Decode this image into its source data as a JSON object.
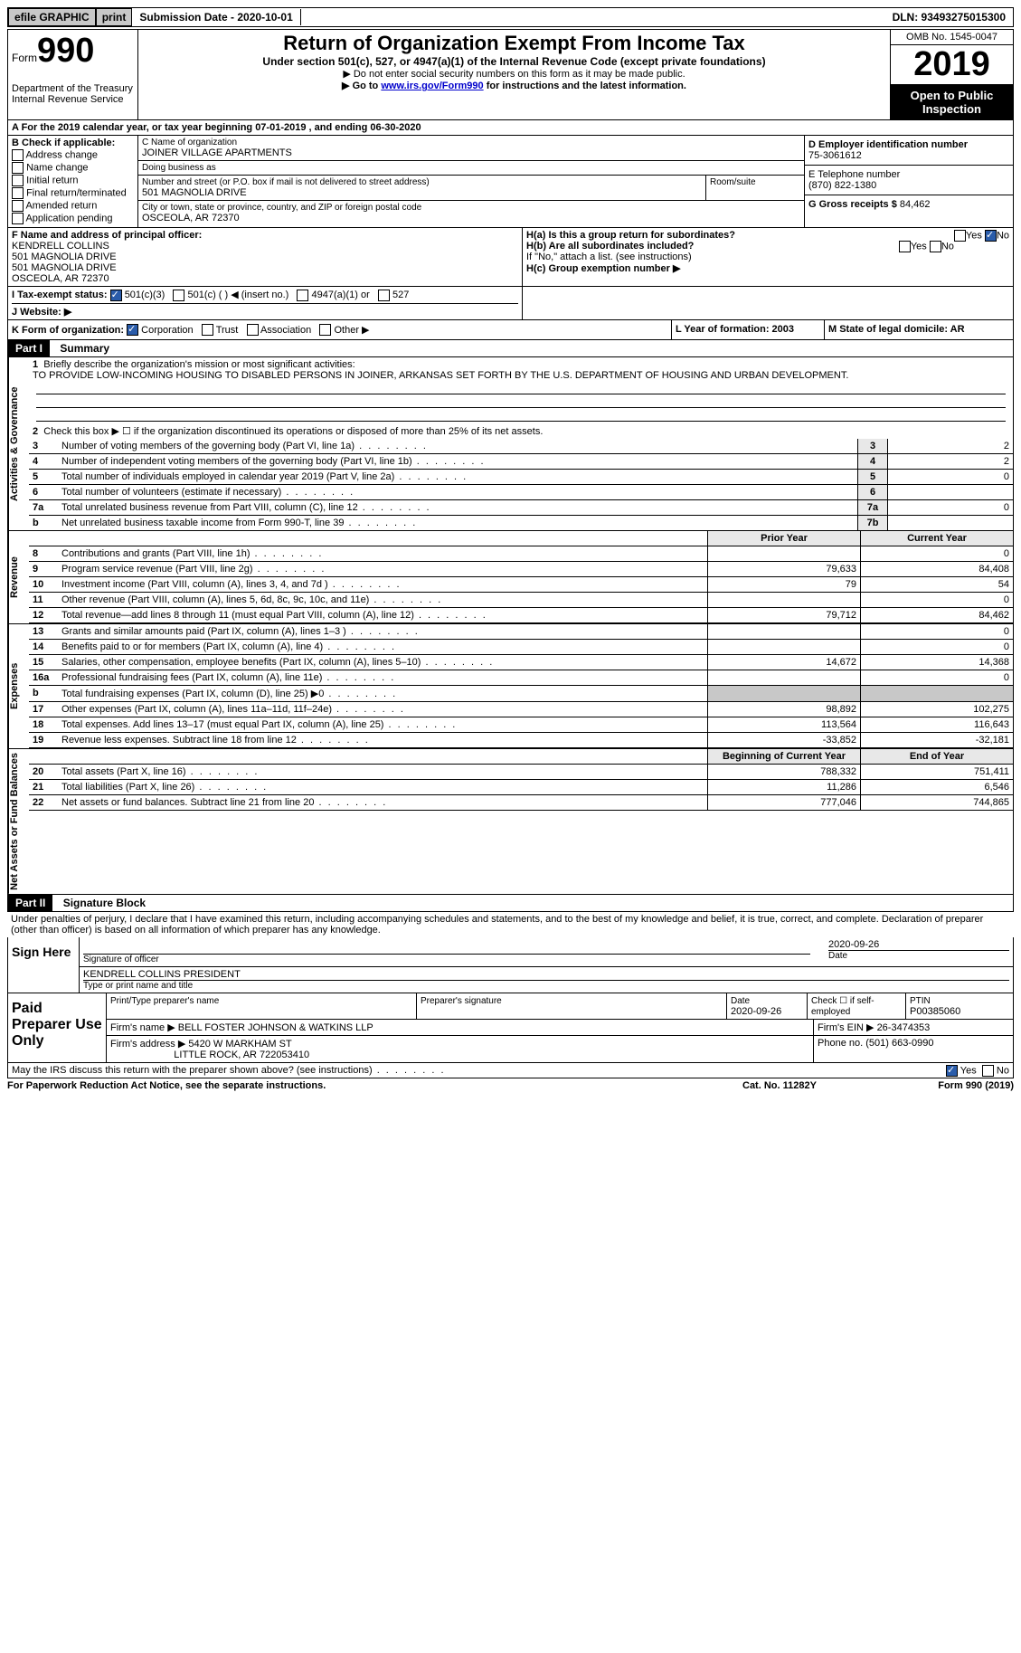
{
  "topbar": {
    "efile": "efile GRAPHIC",
    "print": "print",
    "submission": "Submission Date - 2020-10-01",
    "dln": "DLN: 93493275015300"
  },
  "header": {
    "form_word": "Form",
    "form_num": "990",
    "dept": "Department of the Treasury\nInternal Revenue Service",
    "title": "Return of Organization Exempt From Income Tax",
    "sub": "Under section 501(c), 527, or 4947(a)(1) of the Internal Revenue Code (except private foundations)",
    "line1": "▶ Do not enter social security numbers on this form as it may be made public.",
    "line2_pre": "▶ Go to ",
    "line2_link": "www.irs.gov/Form990",
    "line2_post": " for instructions and the latest information.",
    "omb": "OMB No. 1545-0047",
    "year": "2019",
    "inspection": "Open to Public Inspection"
  },
  "lineA": "A For the 2019 calendar year, or tax year beginning 07-01-2019    , and ending 06-30-2020",
  "secB": {
    "label": "B Check if applicable:",
    "opts": [
      "Address change",
      "Name change",
      "Initial return",
      "Final return/terminated",
      "Amended return",
      "Application pending"
    ]
  },
  "secC": {
    "name_lbl": "C Name of organization",
    "name": "JOINER VILLAGE APARTMENTS",
    "dba_lbl": "Doing business as",
    "dba": "",
    "addr_lbl": "Number and street (or P.O. box if mail is not delivered to street address)",
    "addr": "501 MAGNOLIA DRIVE",
    "room_lbl": "Room/suite",
    "city_lbl": "City or town, state or province, country, and ZIP or foreign postal code",
    "city": "OSCEOLA, AR  72370"
  },
  "secD": {
    "ein_lbl": "D Employer identification number",
    "ein": "75-3061612",
    "tel_lbl": "E Telephone number",
    "tel": "(870) 822-1380",
    "gross_lbl": "G Gross receipts $",
    "gross": "84,462"
  },
  "secF": {
    "lbl": "F Name and address of principal officer:",
    "name": "KENDRELL COLLINS",
    "l1": "501 MAGNOLIA DRIVE",
    "l2": "501 MAGNOLIA DRIVE",
    "l3": "OSCEOLA, AR  72370"
  },
  "secH": {
    "a": "H(a)  Is this a group return for subordinates?",
    "b": "H(b)  Are all subordinates included?",
    "note": "If \"No,\" attach a list. (see instructions)",
    "c": "H(c)  Group exemption number ▶"
  },
  "secI": {
    "lbl": "I   Tax-exempt status:",
    "o1": "501(c)(3)",
    "o2": "501(c) (  ) ◀ (insert no.)",
    "o3": "4947(a)(1) or",
    "o4": "527"
  },
  "secJ": "J  Website: ▶",
  "secK": {
    "lbl": "K Form of organization:",
    "opts": [
      "Corporation",
      "Trust",
      "Association",
      "Other ▶"
    ],
    "L": "L Year of formation: 2003",
    "M": "M State of legal domicile: AR"
  },
  "part1": {
    "hdr": "Part I",
    "title": "Summary",
    "q1_lbl": "Briefly describe the organization's mission or most significant activities:",
    "q1_txt": "TO PROVIDE LOW-INCOMING HOUSING TO DISABLED PERSONS IN JOINER, ARKANSAS SET FORTH BY THE U.S. DEPARTMENT OF HOUSING AND URBAN DEVELOPMENT.",
    "q2": "Check this box ▶ ☐ if the organization discontinued its operations or disposed of more than 25% of its net assets.",
    "lines_single": [
      {
        "n": "3",
        "t": "Number of voting members of the governing body (Part VI, line 1a)",
        "b": "3",
        "v": "2"
      },
      {
        "n": "4",
        "t": "Number of independent voting members of the governing body (Part VI, line 1b)",
        "b": "4",
        "v": "2"
      },
      {
        "n": "5",
        "t": "Total number of individuals employed in calendar year 2019 (Part V, line 2a)",
        "b": "5",
        "v": "0"
      },
      {
        "n": "6",
        "t": "Total number of volunteers (estimate if necessary)",
        "b": "6",
        "v": ""
      },
      {
        "n": "7a",
        "t": "Total unrelated business revenue from Part VIII, column (C), line 12",
        "b": "7a",
        "v": "0"
      },
      {
        "n": "b",
        "t": "Net unrelated business taxable income from Form 990-T, line 39",
        "b": "7b",
        "v": ""
      }
    ],
    "col_hdr": {
      "c1": "Prior Year",
      "c2": "Current Year"
    },
    "revenue": [
      {
        "n": "8",
        "t": "Contributions and grants (Part VIII, line 1h)",
        "c1": "",
        "c2": "0"
      },
      {
        "n": "9",
        "t": "Program service revenue (Part VIII, line 2g)",
        "c1": "79,633",
        "c2": "84,408"
      },
      {
        "n": "10",
        "t": "Investment income (Part VIII, column (A), lines 3, 4, and 7d )",
        "c1": "79",
        "c2": "54"
      },
      {
        "n": "11",
        "t": "Other revenue (Part VIII, column (A), lines 5, 6d, 8c, 9c, 10c, and 11e)",
        "c1": "",
        "c2": "0"
      },
      {
        "n": "12",
        "t": "Total revenue—add lines 8 through 11 (must equal Part VIII, column (A), line 12)",
        "c1": "79,712",
        "c2": "84,462"
      }
    ],
    "expenses": [
      {
        "n": "13",
        "t": "Grants and similar amounts paid (Part IX, column (A), lines 1–3 )",
        "c1": "",
        "c2": "0"
      },
      {
        "n": "14",
        "t": "Benefits paid to or for members (Part IX, column (A), line 4)",
        "c1": "",
        "c2": "0"
      },
      {
        "n": "15",
        "t": "Salaries, other compensation, employee benefits (Part IX, column (A), lines 5–10)",
        "c1": "14,672",
        "c2": "14,368"
      },
      {
        "n": "16a",
        "t": "Professional fundraising fees (Part IX, column (A), line 11e)",
        "c1": "",
        "c2": "0"
      },
      {
        "n": "b",
        "t": "Total fundraising expenses (Part IX, column (D), line 25) ▶0",
        "c1": "shade",
        "c2": "shade"
      },
      {
        "n": "17",
        "t": "Other expenses (Part IX, column (A), lines 11a–11d, 11f–24e)",
        "c1": "98,892",
        "c2": "102,275"
      },
      {
        "n": "18",
        "t": "Total expenses. Add lines 13–17 (must equal Part IX, column (A), line 25)",
        "c1": "113,564",
        "c2": "116,643"
      },
      {
        "n": "19",
        "t": "Revenue less expenses. Subtract line 18 from line 12",
        "c1": "-33,852",
        "c2": "-32,181"
      }
    ],
    "bal_hdr": {
      "c1": "Beginning of Current Year",
      "c2": "End of Year"
    },
    "balances": [
      {
        "n": "20",
        "t": "Total assets (Part X, line 16)",
        "c1": "788,332",
        "c2": "751,411"
      },
      {
        "n": "21",
        "t": "Total liabilities (Part X, line 26)",
        "c1": "11,286",
        "c2": "6,546"
      },
      {
        "n": "22",
        "t": "Net assets or fund balances. Subtract line 21 from line 20",
        "c1": "777,046",
        "c2": "744,865"
      }
    ],
    "vtabs": {
      "gov": "Activities & Governance",
      "rev": "Revenue",
      "exp": "Expenses",
      "bal": "Net Assets or Fund Balances"
    }
  },
  "part2": {
    "hdr": "Part II",
    "title": "Signature Block",
    "decl": "Under penalties of perjury, I declare that I have examined this return, including accompanying schedules and statements, and to the best of my knowledge and belief, it is true, correct, and complete. Declaration of preparer (other than officer) is based on all information of which preparer has any knowledge.",
    "sign_here": "Sign Here",
    "sig_date": "2020-09-26",
    "sig_lbl": "Signature of officer",
    "date_lbl": "Date",
    "name": "KENDRELL COLLINS PRESIDENT",
    "name_lbl": "Type or print name and title",
    "paid": "Paid Preparer Use Only",
    "prep_hdrs": {
      "a": "Print/Type preparer's name",
      "b": "Preparer's signature",
      "c": "Date",
      "d": "Check ☐ if self-employed",
      "e": "PTIN"
    },
    "prep_date": "2020-09-26",
    "ptin": "P00385060",
    "firm_name_lbl": "Firm's name    ▶",
    "firm_name": "BELL FOSTER JOHNSON & WATKINS LLP",
    "firm_ein_lbl": "Firm's EIN ▶",
    "firm_ein": "26-3474353",
    "firm_addr_lbl": "Firm's address ▶",
    "firm_addr1": "5420 W MARKHAM ST",
    "firm_addr2": "LITTLE ROCK, AR  722053410",
    "phone_lbl": "Phone no.",
    "phone": "(501) 663-0990",
    "discuss": "May the IRS discuss this return with the preparer shown above? (see instructions)"
  },
  "footer": {
    "l": "For Paperwork Reduction Act Notice, see the separate instructions.",
    "m": "Cat. No. 11282Y",
    "r": "Form 990 (2019)"
  }
}
